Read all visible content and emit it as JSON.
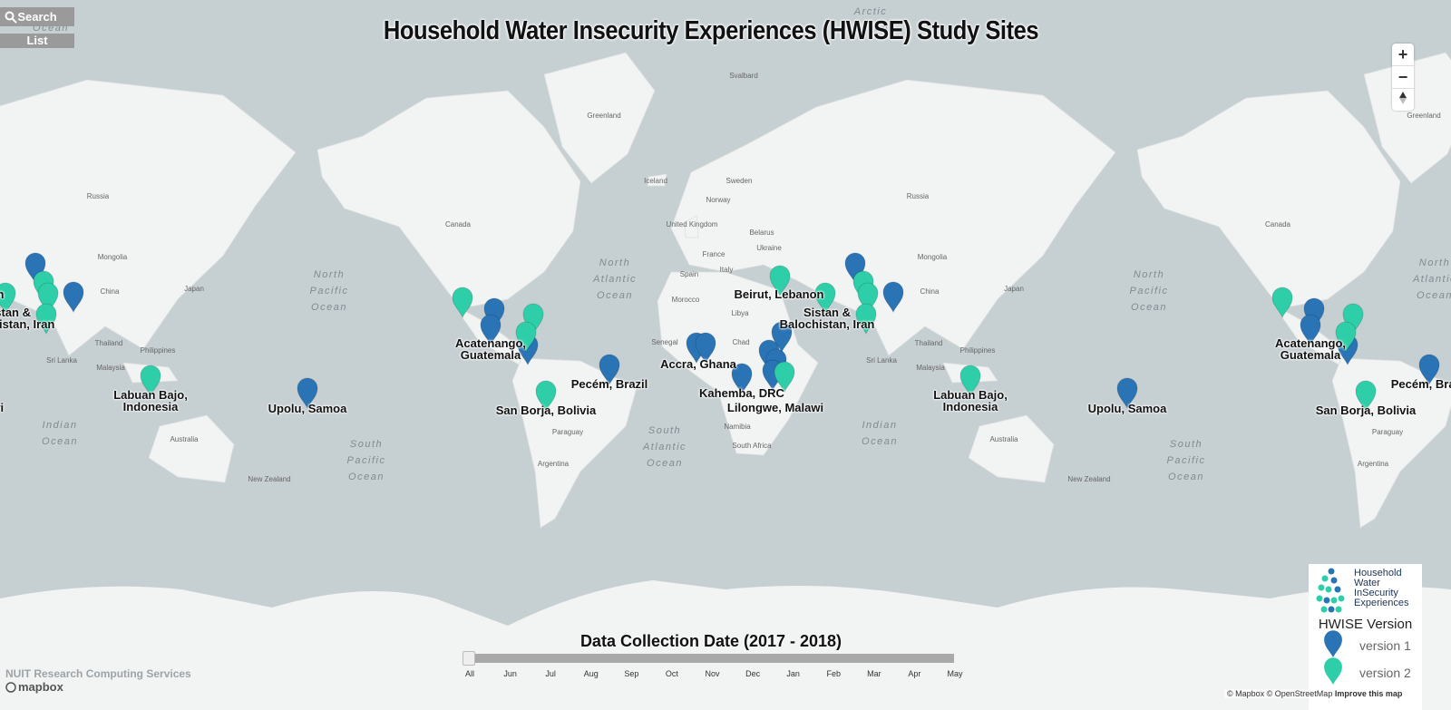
{
  "title": "Household Water Insecurity Experiences (HWISE) Study Sites",
  "controls": {
    "search": "Search",
    "list": "List",
    "zoom_in": "+",
    "zoom_out": "−"
  },
  "sites": {
    "labels": [
      "Acatenango, Guatemala",
      "Pecém, Brazil",
      "Accra, Ghana",
      "Kahemba, DRC",
      "Lilongwe, Malawi",
      "Beirut, Lebanon",
      "Sistan & Balochistan, Iran",
      "Labuan Bajo, Indonesia",
      "Upolu, Samoa",
      "San Borja, Bolivia"
    ]
  },
  "places": [
    "Greenland",
    "Russia",
    "Canada",
    "Mongolia",
    "China",
    "Japan",
    "Thailand",
    "Philippines",
    "Sri Lanka",
    "Malaysia",
    "Australia",
    "New Zealand",
    "Iceland",
    "Sweden",
    "Norway",
    "United Kingdom",
    "Belarus",
    "Ukraine",
    "Spain",
    "Italy",
    "France",
    "Morocco",
    "Libya",
    "Senegal",
    "Chad",
    "Paraguay",
    "Argentina",
    "Namibia",
    "South Africa",
    "Svalbard"
  ],
  "oceans": [
    "North Pacific Ocean",
    "North Atlantic Ocean",
    "Indian Ocean",
    "South Pacific Ocean",
    "South Atlantic Ocean",
    "Arctic Ocean"
  ],
  "timeline": {
    "title": "Data Collection Date (2017 - 2018)",
    "ticks": [
      "All",
      "Jun",
      "Jul",
      "Aug",
      "Sep",
      "Oct",
      "Nov",
      "Dec",
      "Jan",
      "Feb",
      "Mar",
      "Apr",
      "May"
    ]
  },
  "legend": {
    "logo": [
      "Household",
      "Water",
      "InSecurity",
      "Experiences"
    ],
    "title": "HWISE Version",
    "items": [
      {
        "label": "version 1",
        "color": "#2a74b5"
      },
      {
        "label": "version 2",
        "color": "#2ecfa8"
      }
    ]
  },
  "footer": {
    "credit": "NUIT Research Computing Services",
    "logo": "mapbox",
    "attribution": "© Mapbox © OpenStreetMap",
    "improve": "Improve this map"
  }
}
